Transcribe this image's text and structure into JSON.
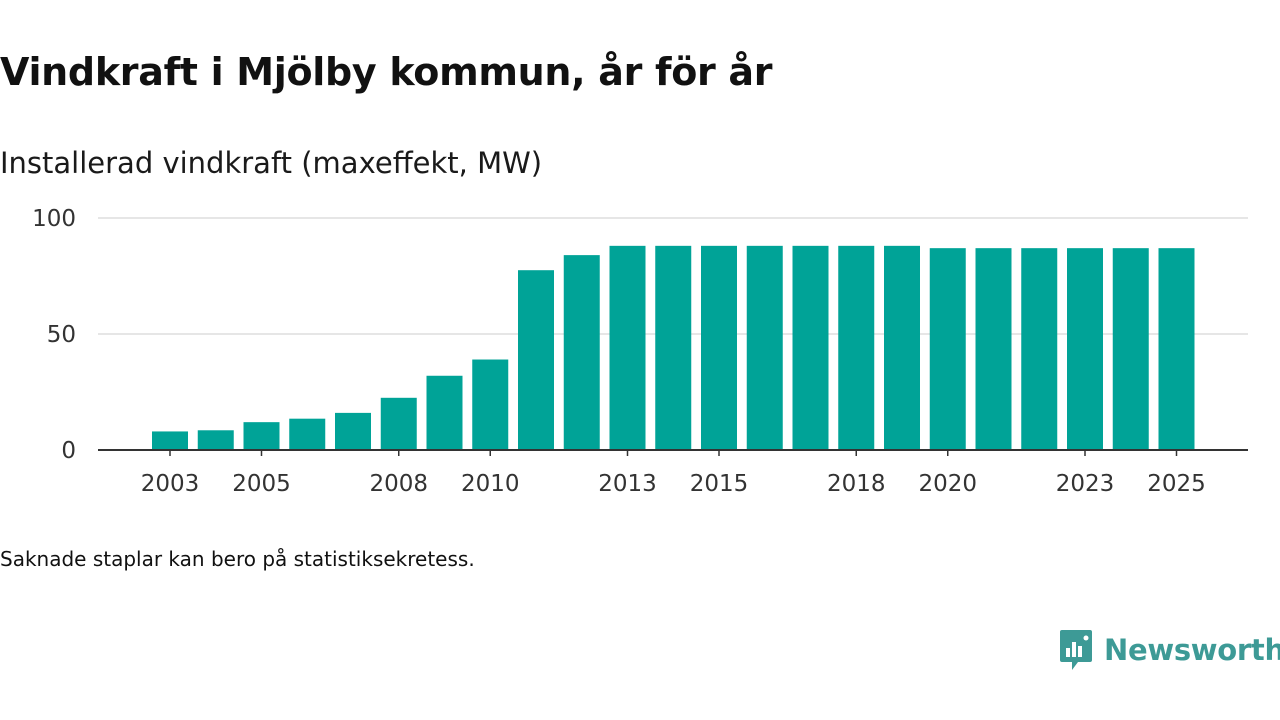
{
  "header": {
    "title": "Vindkraft i Mjölby kommun, år för år",
    "subtitle": "Installerad vindkraft (maxeffekt, MW)"
  },
  "footer": {
    "note": "Saknade staplar kan bero på statistiksekretess.",
    "brand": "Newsworthy"
  },
  "colors": {
    "bar": "#00a397",
    "grid": "#dddddd",
    "axis": "#333333",
    "brand": "#3d9a96"
  },
  "chart_data": {
    "type": "bar",
    "title": "Vindkraft i Mjölby kommun, år för år",
    "subtitle": "Installerad vindkraft (maxeffekt, MW)",
    "xlabel": "",
    "ylabel": "Installerad vindkraft (maxeffekt, MW)",
    "categories": [
      2003,
      2004,
      2005,
      2006,
      2007,
      2008,
      2009,
      2010,
      2011,
      2012,
      2013,
      2014,
      2015,
      2016,
      2017,
      2018,
      2019,
      2020,
      2021,
      2022,
      2023,
      2024,
      2025
    ],
    "values": [
      8,
      8.5,
      12,
      13.5,
      16,
      22.5,
      32,
      39,
      77.5,
      84,
      88,
      88,
      88,
      88,
      88,
      88,
      88,
      87,
      87,
      87,
      87,
      87,
      87
    ],
    "x_tick_labels": [
      "2003",
      "2005",
      "2008",
      "2010",
      "2013",
      "2015",
      "2018",
      "2020",
      "2023",
      "2025"
    ],
    "y_ticks": [
      0,
      50,
      100
    ],
    "ylim": [
      0,
      100
    ],
    "grid": true,
    "legend": "none"
  }
}
